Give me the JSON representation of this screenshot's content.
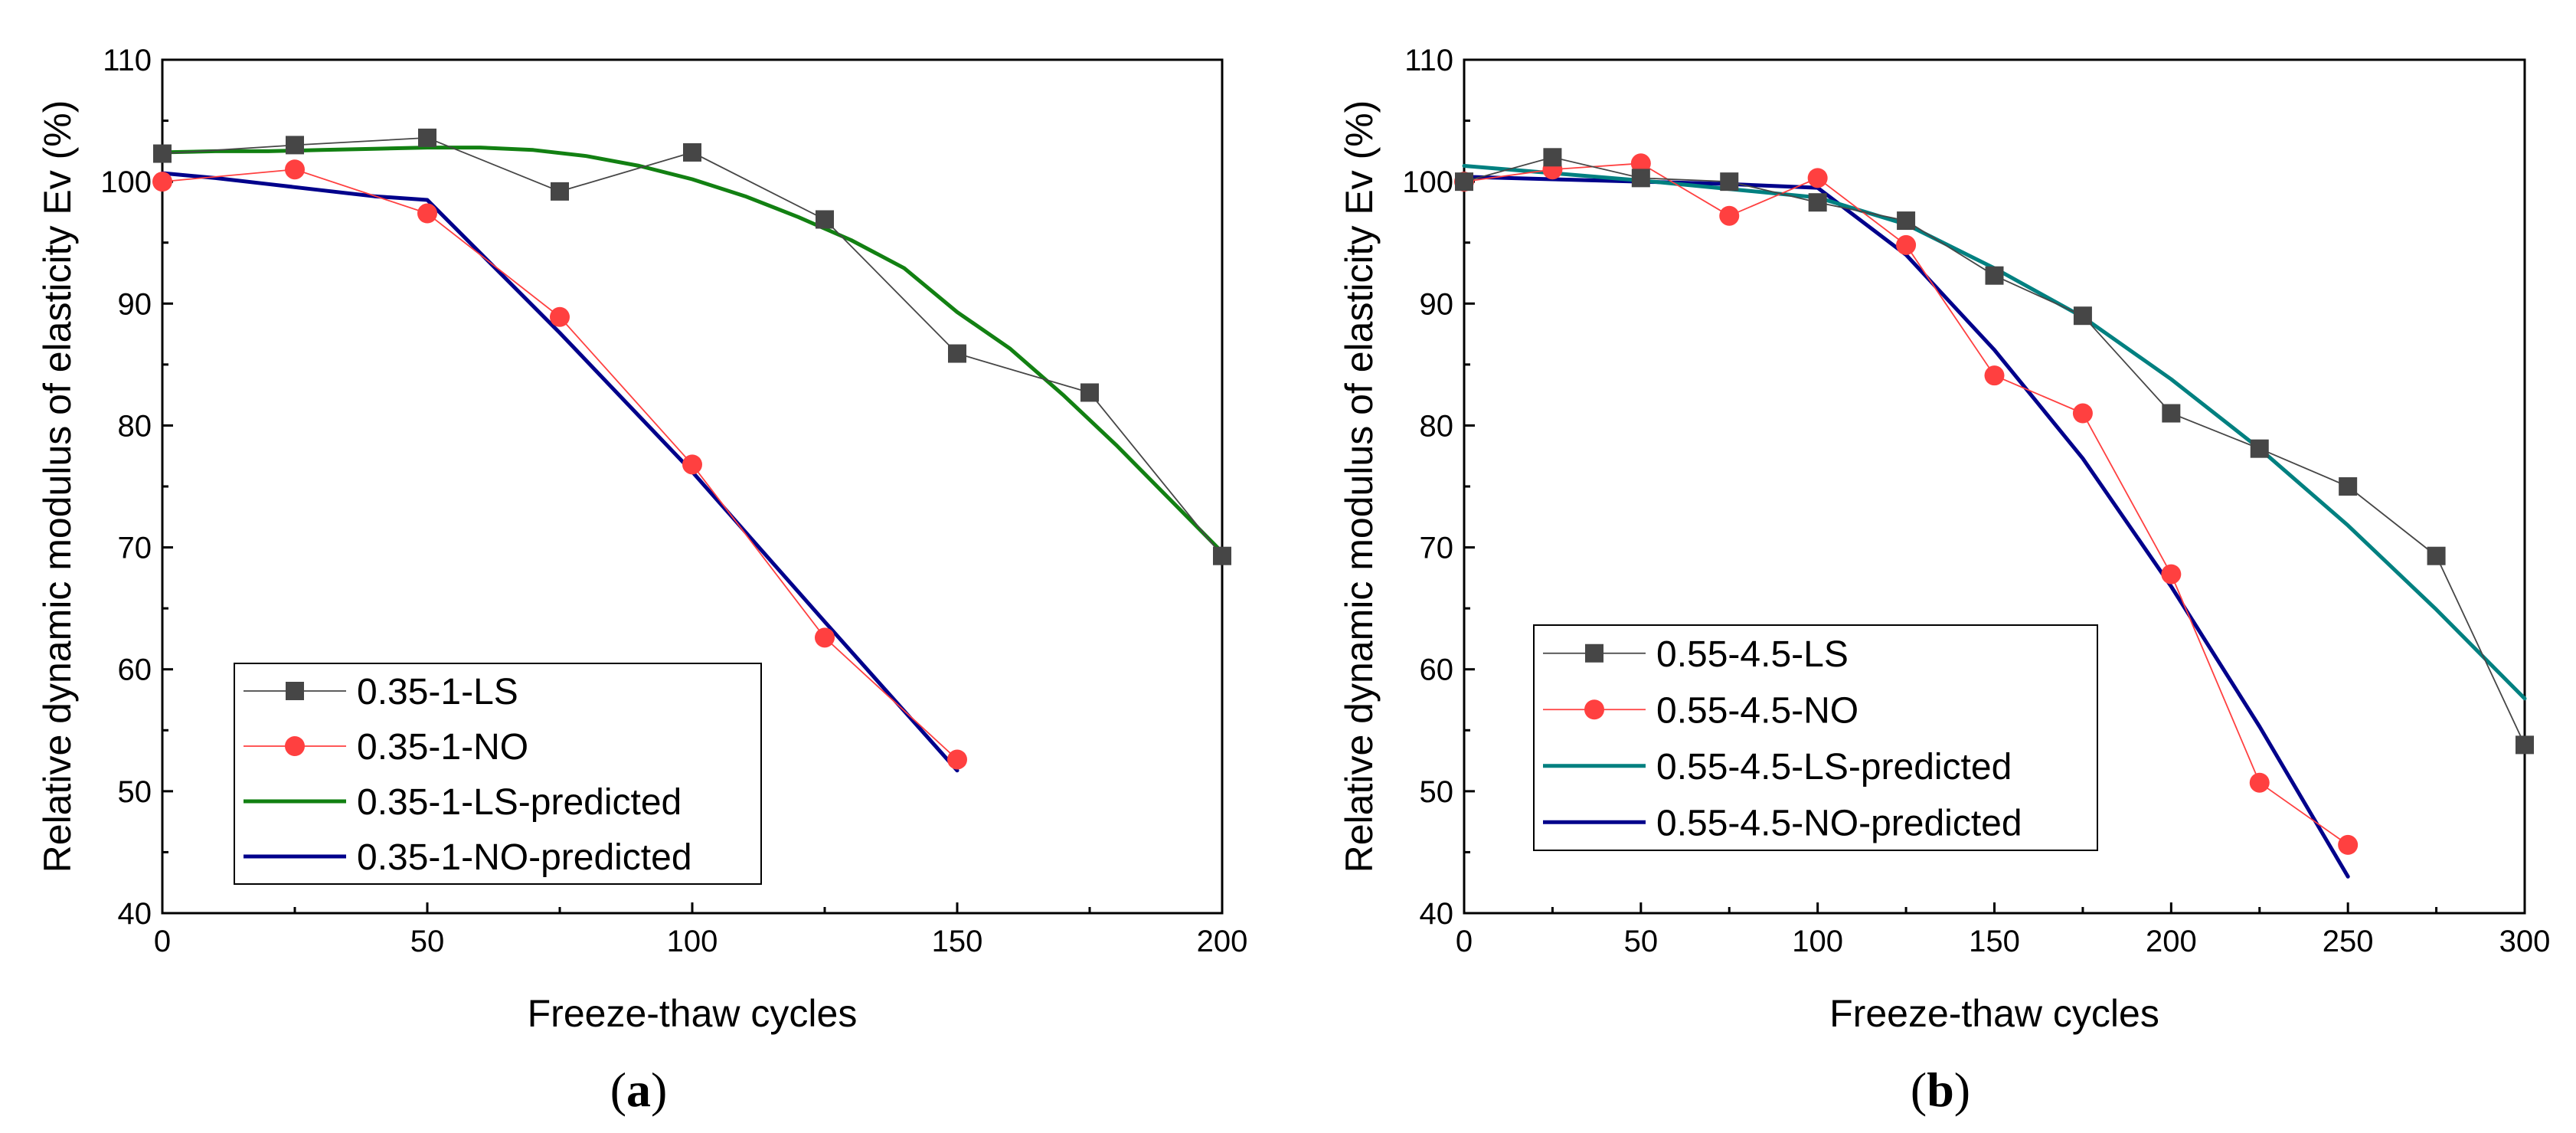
{
  "chart_data": [
    {
      "type": "line",
      "panel_label": "a",
      "xlabel": "Freeze-thaw cycles",
      "ylabel": "Relative dynamic modulus of elasticity Ev (%)",
      "xlim": [
        0,
        200
      ],
      "ylim": [
        40,
        110
      ],
      "xticks": [
        0,
        50,
        100,
        150,
        200
      ],
      "yticks": [
        40,
        50,
        60,
        70,
        80,
        90,
        100,
        110
      ],
      "grid": false,
      "legend_position": "bottom-left",
      "series": [
        {
          "name": "0.35-1-LS",
          "kind": "measured",
          "marker": "square",
          "color": "#464646",
          "x": [
            0,
            25,
            50,
            75,
            100,
            125,
            150,
            175,
            200
          ],
          "y": [
            102.3,
            103,
            103.6,
            99.2,
            102.4,
            96.9,
            85.9,
            82.7,
            69.3
          ]
        },
        {
          "name": "0.35-1-NO",
          "kind": "measured",
          "marker": "circle",
          "color": "#ff4040",
          "x": [
            0,
            25,
            50,
            75,
            100,
            125,
            150
          ],
          "y": [
            100,
            101,
            97.4,
            88.9,
            76.8,
            62.6,
            52.6
          ]
        },
        {
          "name": "0.35-1-LS-predicted",
          "kind": "predicted",
          "color": "#128012",
          "x": [
            0,
            10,
            20,
            30,
            40,
            50,
            60,
            70,
            80,
            90,
            100,
            110,
            120,
            130,
            140,
            150,
            160,
            170,
            180,
            190,
            200
          ],
          "y": [
            102.4,
            102.5,
            102.5,
            102.6,
            102.7,
            102.8,
            102.8,
            102.6,
            102.1,
            101.3,
            100.2,
            98.8,
            97.1,
            95.2,
            92.9,
            89.3,
            86.3,
            82.5,
            78.4,
            74.0,
            69.6
          ]
        },
        {
          "name": "0.35-1-NO-predicted",
          "kind": "predicted",
          "color": "#00008b",
          "x": [
            0,
            10,
            20,
            30,
            40,
            50,
            75,
            100,
            125,
            150
          ],
          "y": [
            100.7,
            100.3,
            99.8,
            99.3,
            98.8,
            98.5,
            87.6,
            76.2,
            63.9,
            51.7
          ]
        }
      ]
    },
    {
      "type": "line",
      "panel_label": "b",
      "xlabel": "Freeze-thaw cycles",
      "ylabel": "Relative dynamic modulus of elasticity Ev (%)",
      "xlim": [
        0,
        300
      ],
      "ylim": [
        40,
        110
      ],
      "xticks": [
        0,
        50,
        100,
        150,
        200,
        250,
        300
      ],
      "yticks": [
        40,
        50,
        60,
        70,
        80,
        90,
        100,
        110
      ],
      "grid": false,
      "legend_position": "bottom-left",
      "series": [
        {
          "name": "0.55-4.5-LS",
          "kind": "measured",
          "marker": "square",
          "color": "#464646",
          "x": [
            0,
            25,
            50,
            75,
            100,
            125,
            150,
            175,
            200,
            225,
            250,
            275,
            300
          ],
          "y": [
            100,
            102,
            100.3,
            100,
            98.3,
            96.8,
            92.3,
            89,
            81,
            78.1,
            75,
            69.3,
            53.8
          ]
        },
        {
          "name": "0.55-4.5-NO",
          "kind": "measured",
          "marker": "circle",
          "color": "#ff4040",
          "x": [
            0,
            25,
            50,
            75,
            100,
            125,
            150,
            175,
            200,
            225,
            250
          ],
          "y": [
            100,
            101,
            101.5,
            97.2,
            100.3,
            94.8,
            84.1,
            81,
            67.8,
            50.7,
            45.6
          ]
        },
        {
          "name": "0.55-4.5-LS-predicted",
          "kind": "predicted",
          "color": "#008080",
          "x": [
            0,
            25,
            50,
            75,
            100,
            125,
            150,
            175,
            200,
            225,
            250,
            275,
            300
          ],
          "y": [
            101.3,
            100.7,
            100.1,
            99.4,
            98.7,
            96.5,
            92.9,
            88.9,
            83.8,
            78.1,
            71.8,
            64.9,
            57.6
          ]
        },
        {
          "name": "0.55-4.5-NO-predicted",
          "kind": "predicted",
          "color": "#00008b",
          "x": [
            0,
            25,
            50,
            75,
            100,
            125,
            150,
            175,
            200,
            225,
            250
          ],
          "y": [
            100.4,
            100.2,
            100,
            99.8,
            99.5,
            94,
            86.2,
            77.3,
            66.8,
            55.3,
            43
          ]
        }
      ]
    }
  ]
}
